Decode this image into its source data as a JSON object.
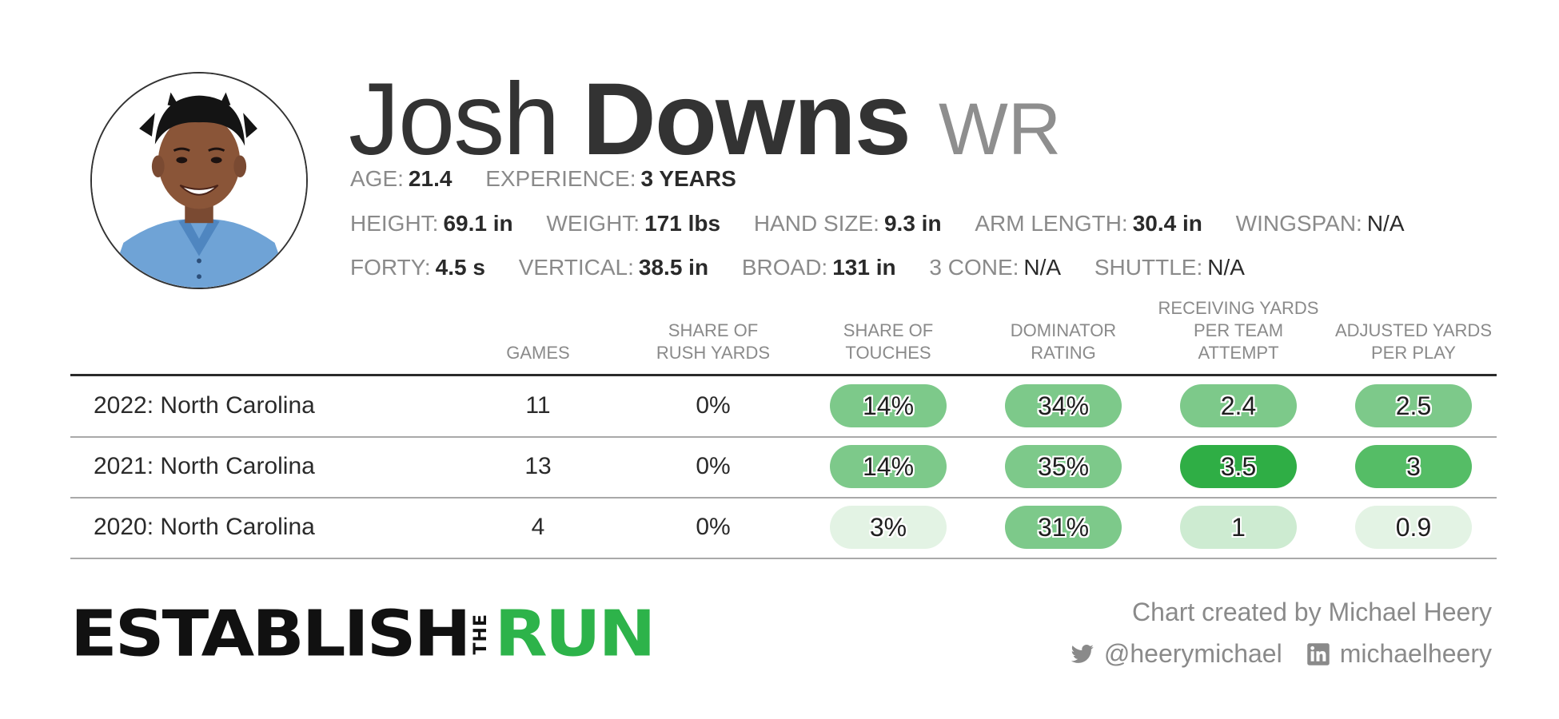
{
  "player": {
    "first_name": "Josh",
    "last_name": "Downs",
    "position": "WR"
  },
  "attributes": {
    "age": {
      "label": "AGE:",
      "value": "21.4"
    },
    "experience": {
      "label": "EXPERIENCE:",
      "value": "3 YEARS"
    },
    "height": {
      "label": "HEIGHT:",
      "value": "69.1 in"
    },
    "weight": {
      "label": "WEIGHT:",
      "value": "171 lbs"
    },
    "hand_size": {
      "label": "HAND SIZE:",
      "value": "9.3 in"
    },
    "arm_length": {
      "label": "ARM LENGTH:",
      "value": "30.4 in"
    },
    "wingspan": {
      "label": "WINGSPAN:",
      "value": "N/A"
    },
    "forty": {
      "label": "FORTY:",
      "value": "4.5 s"
    },
    "vertical": {
      "label": "VERTICAL:",
      "value": "38.5 in"
    },
    "broad": {
      "label": "BROAD:",
      "value": "131 in"
    },
    "three_cone": {
      "label": "3 CONE:",
      "value": "N/A"
    },
    "shuttle": {
      "label": "SHUTTLE:",
      "value": "N/A"
    }
  },
  "table": {
    "headers": {
      "games": "GAMES",
      "rush_share": "SHARE OF\nRUSH YARDS",
      "touch_share": "SHARE OF\nTOUCHES",
      "dominator": "DOMINATOR\nRATING",
      "rec_yards": "RECEIVING YARDS\nPER TEAM\nATTEMPT",
      "adj_yards": "ADJUSTED YARDS\nPER PLAY"
    },
    "rows": [
      {
        "team": "2022: North Carolina",
        "games": "11",
        "rush_share": "0%",
        "touch_share": "14%",
        "dominator": "34%",
        "rec_yards": "2.4",
        "adj_yards": "2.5"
      },
      {
        "team": "2021: North Carolina",
        "games": "13",
        "rush_share": "0%",
        "touch_share": "14%",
        "dominator": "35%",
        "rec_yards": "3.5",
        "adj_yards": "3"
      },
      {
        "team": "2020: North Carolina",
        "games": "4",
        "rush_share": "0%",
        "touch_share": "3%",
        "dominator": "31%",
        "rec_yards": "1",
        "adj_yards": "0.9"
      }
    ],
    "pill_colors": [
      {
        "touch_share": "#7dc98a",
        "dominator": "#7dc98a",
        "rec_yards": "#7dc98a",
        "adj_yards": "#7dc98a"
      },
      {
        "touch_share": "#7dc98a",
        "dominator": "#7dc98a",
        "rec_yards": "#2fae45",
        "adj_yards": "#55bd66"
      },
      {
        "touch_share": "#e3f3e4",
        "dominator": "#7dc98a",
        "rec_yards": "#cdebd1",
        "adj_yards": "#e3f3e4"
      }
    ]
  },
  "footer": {
    "logo_part1": "ESTABLISH",
    "logo_the": "THE",
    "logo_part2": "RUN",
    "credit": "Chart created by Michael Heery",
    "twitter_handle": "@heerymichael",
    "linkedin_handle": "michaelheery",
    "twitter_icon": "twitter-icon",
    "linkedin_icon": "linkedin-icon"
  }
}
